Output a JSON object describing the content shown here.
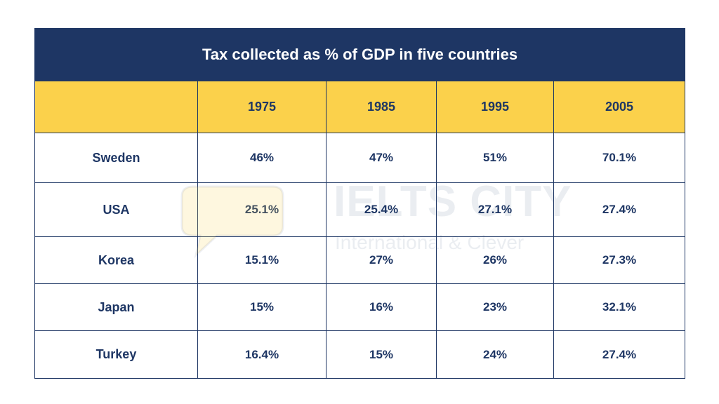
{
  "chart_data": {
    "type": "table",
    "title": "Tax collected as % of GDP in five countries",
    "columns": [
      "1975",
      "1985",
      "1995",
      "2005"
    ],
    "rows": [
      {
        "name": "Sweden",
        "values": [
          "46%",
          "47%",
          "51%",
          "70.1%"
        ]
      },
      {
        "name": "USA",
        "values": [
          "25.1%",
          "25.4%",
          "27.1%",
          "27.4%"
        ]
      },
      {
        "name": "Korea",
        "values": [
          "15.1%",
          "27%",
          "26%",
          "27.3%"
        ]
      },
      {
        "name": "Japan",
        "values": [
          "15%",
          "16%",
          "23%",
          "32.1%"
        ]
      },
      {
        "name": "Turkey",
        "values": [
          "16.4%",
          "15%",
          "24%",
          "27.4%"
        ]
      }
    ],
    "unit": "% of GDP"
  },
  "watermark": {
    "title": "IELTS CITY",
    "subtitle": "International & Clever"
  },
  "colors": {
    "navy": "#1e3664",
    "yellow": "#fbd14b",
    "white": "#ffffff"
  }
}
